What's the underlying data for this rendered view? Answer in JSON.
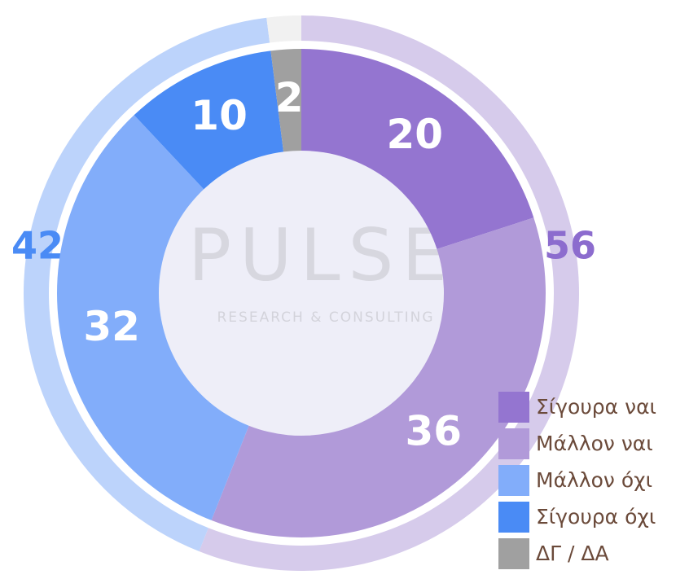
{
  "chart_data": {
    "type": "donut",
    "categories": [
      "Σίγουρα ναι",
      "Μάλλον ναι",
      "Μάλλον όχι",
      "Σίγουρα όχι",
      "ΔΓ / ΔΑ"
    ],
    "values": [
      20,
      36,
      32,
      10,
      2
    ],
    "colors": [
      "#9475d0",
      "#b19ad9",
      "#82adfa",
      "#4a8bf5",
      "#a0a0a0"
    ],
    "outer_values": [
      56,
      42,
      2
    ],
    "outer_value_labels": [
      "56",
      "42",
      null
    ],
    "outer_colors": [
      "#d6cbeb",
      "#bcd3fb",
      "#f1f1f1"
    ],
    "outer_label_colors": [
      "#8c6cce",
      "#4a8bf5",
      "#a0a0a0"
    ],
    "watermark": {
      "title": "PULSE",
      "subtitle": "RESEARCH & CONSULTING"
    },
    "legend": "bottom-right"
  }
}
